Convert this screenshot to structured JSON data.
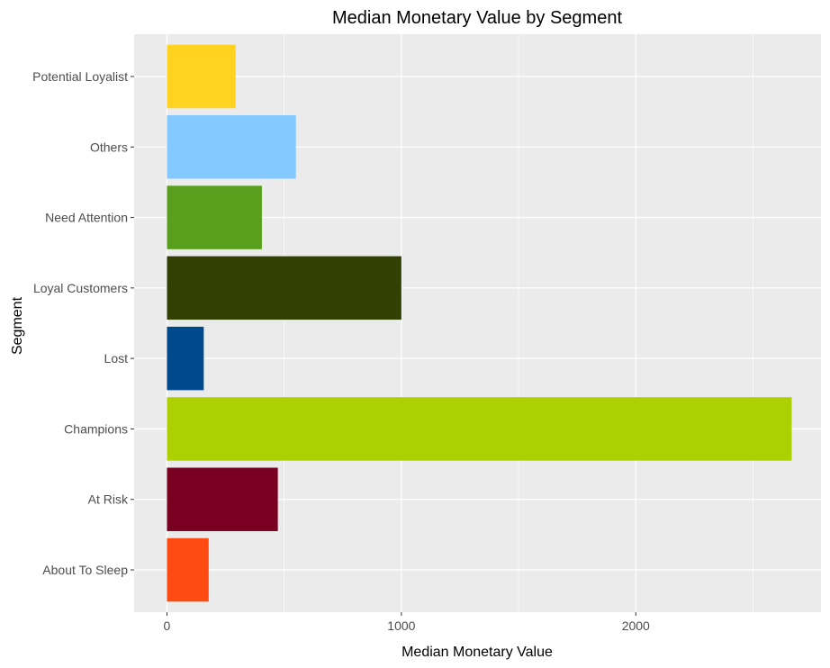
{
  "chart_data": {
    "type": "bar",
    "orientation": "horizontal",
    "title": "Median Monetary Value by Segment",
    "xlabel": "Median Monetary Value",
    "ylabel": "Segment",
    "categories": [
      "About To Sleep",
      "At Risk",
      "Champions",
      "Lost",
      "Loyal Customers",
      "Need Attention",
      "Others",
      "Potential Loyalist"
    ],
    "values": [
      178,
      473,
      2665,
      157,
      1000,
      405,
      550,
      293
    ],
    "colors": [
      "#FF4A11",
      "#7A0021",
      "#ADD100",
      "#004A8B",
      "#334004",
      "#589F1E",
      "#83C8FF",
      "#FFD31F"
    ],
    "x_ticks": [
      0,
      1000,
      2000
    ],
    "xlim": [
      -140,
      2790
    ],
    "grid": true,
    "legend": "none",
    "panel_background": "#EBEBEB",
    "grid_color": "#FFFFFF"
  }
}
